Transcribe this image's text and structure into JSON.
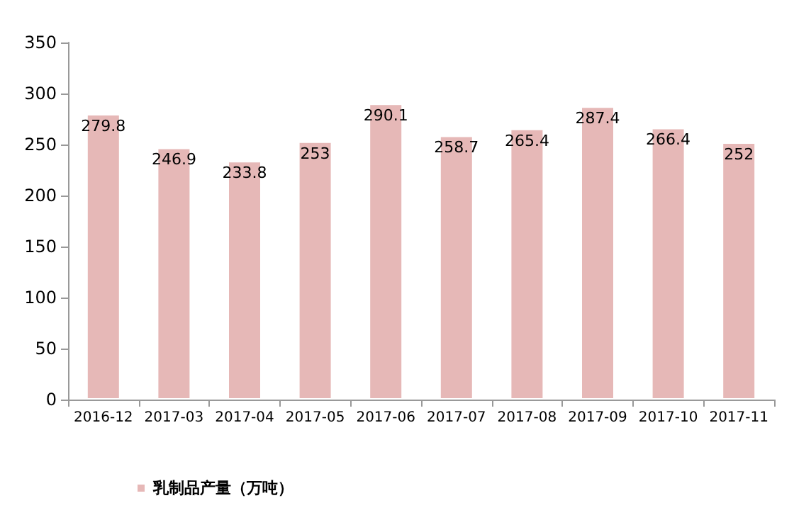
{
  "chart_data": {
    "type": "bar",
    "categories": [
      "2016-12",
      "2017-03",
      "2017-04",
      "2017-05",
      "2017-06",
      "2017-07",
      "2017-08",
      "2017-09",
      "2017-10",
      "2017-11"
    ],
    "series": [
      {
        "name": "乳制品产量（万吨）",
        "color": "#e6b8b7",
        "values": [
          279.8,
          246.9,
          233.8,
          253,
          290.1,
          258.7,
          265.4,
          287.4,
          266.4,
          252
        ]
      }
    ],
    "ylim": [
      0,
      350
    ],
    "yticks": [
      0,
      50,
      100,
      150,
      200,
      250,
      300,
      350
    ],
    "data_labels": true,
    "legend": "bottom left"
  }
}
